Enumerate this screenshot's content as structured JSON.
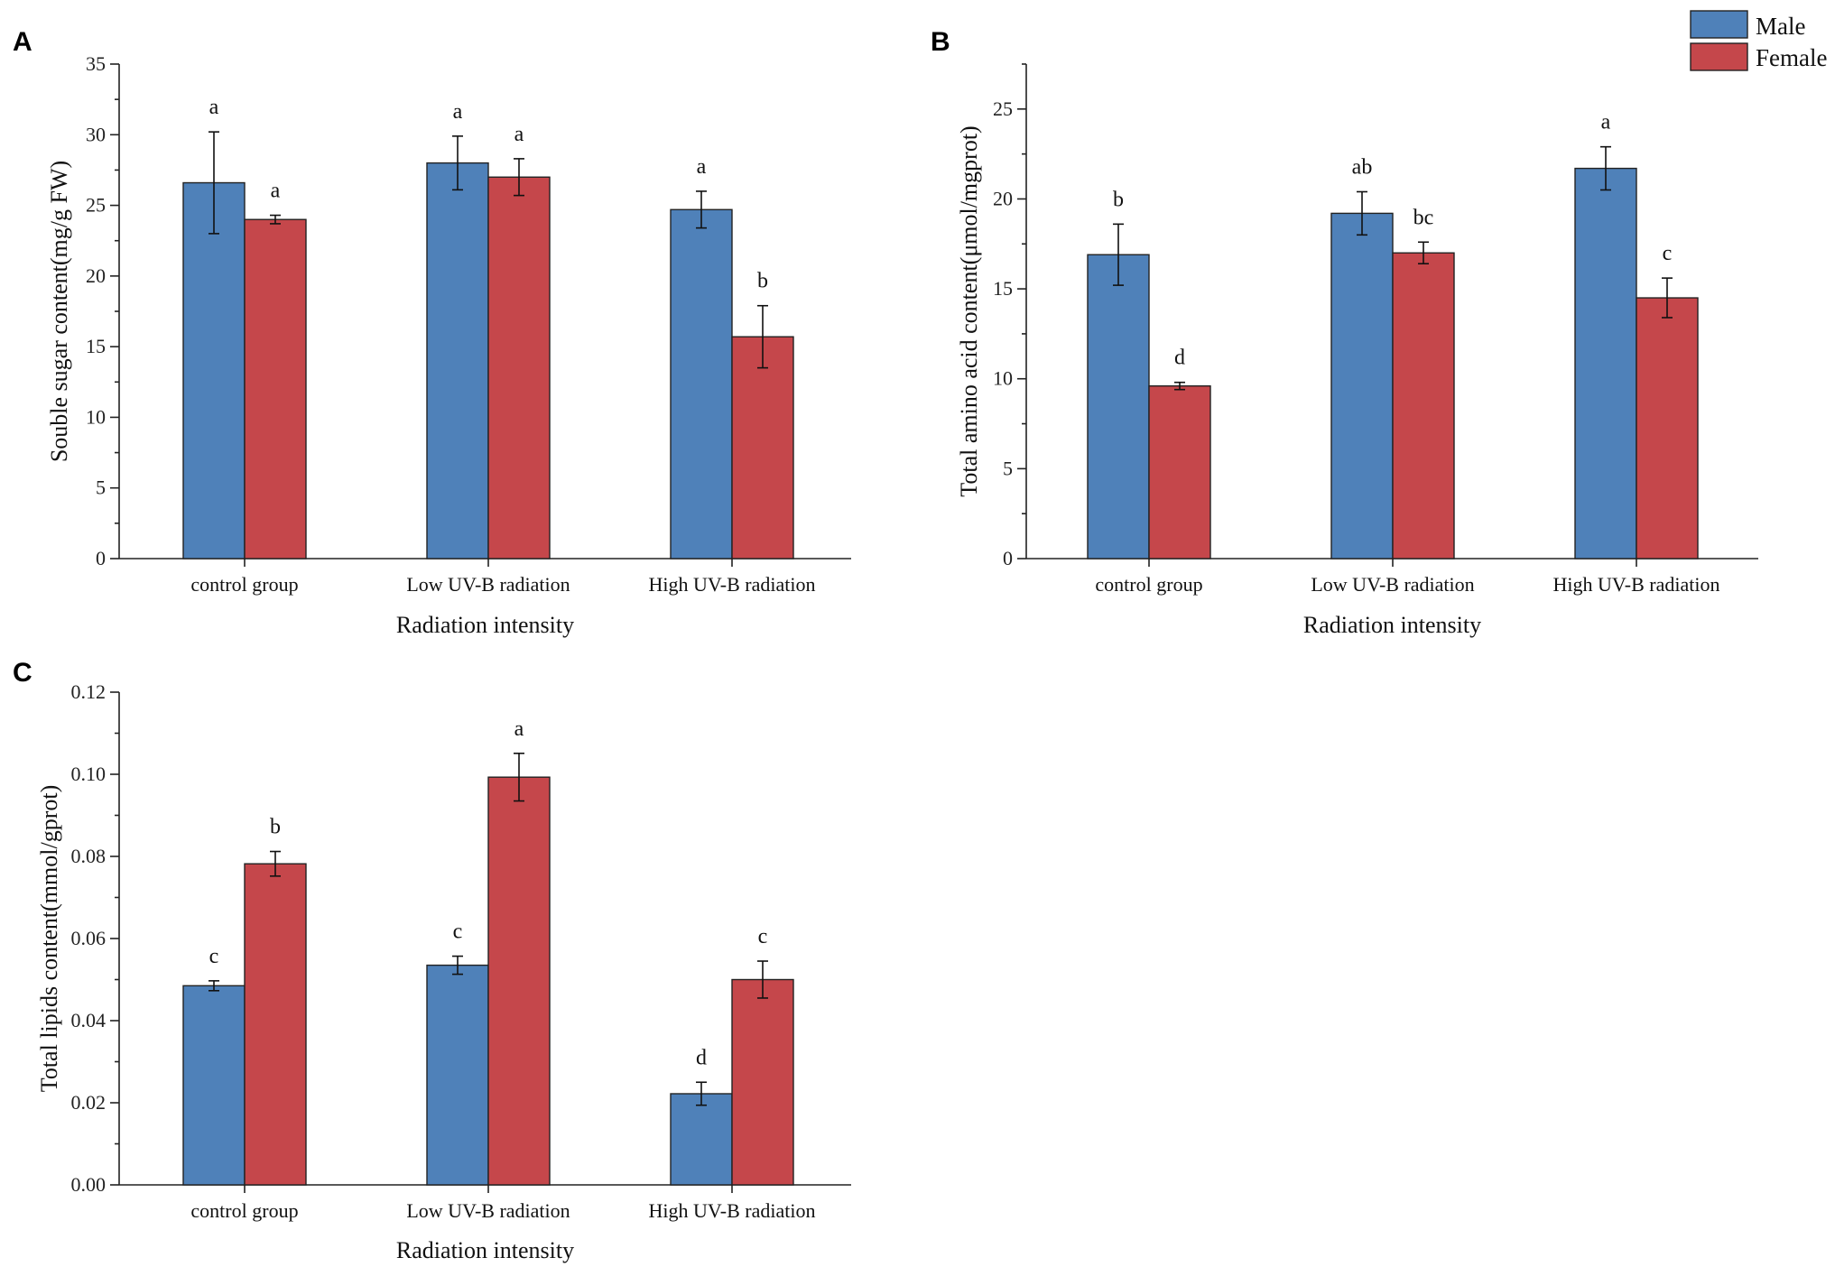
{
  "legend": {
    "entries": [
      {
        "label": "Male",
        "color": "#4f81b9"
      },
      {
        "label": "Female",
        "color": "#c5474b"
      }
    ]
  },
  "chart_data": [
    {
      "id": "A",
      "panel_label": "A",
      "type": "bar",
      "title": "",
      "xlabel": "Radiation intensity",
      "ylabel": "Souble sugar content(mg/g FW)",
      "categories": [
        "control group",
        "Low UV-B radiation",
        "High UV-B radiation"
      ],
      "ylim": [
        0,
        35
      ],
      "yticks": [
        0,
        5,
        10,
        15,
        20,
        25,
        30,
        35
      ],
      "ytick_labels": [
        "0",
        "5",
        "10",
        "15",
        "20",
        "25",
        "30",
        "35"
      ],
      "series": [
        {
          "name": "Male",
          "values": [
            26.6,
            28.0,
            24.7
          ],
          "errors": [
            3.6,
            1.9,
            1.3
          ],
          "sig": [
            "a",
            "a",
            "a"
          ]
        },
        {
          "name": "Female",
          "values": [
            24.0,
            27.0,
            15.7
          ],
          "errors": [
            0.3,
            1.3,
            2.2
          ],
          "sig": [
            "a",
            "a",
            "b"
          ]
        }
      ]
    },
    {
      "id": "B",
      "panel_label": "B",
      "type": "bar",
      "title": "",
      "xlabel": "Radiation intensity",
      "ylabel": "Total amino acid content(μmol/mgprot)",
      "categories": [
        "control group",
        "Low UV-B radiation",
        "High UV-B radiation"
      ],
      "ylim": [
        0,
        27.5
      ],
      "yticks": [
        0,
        5,
        10,
        15,
        20,
        25
      ],
      "ytick_labels": [
        "0",
        "5",
        "10",
        "15",
        "20",
        "25"
      ],
      "series": [
        {
          "name": "Male",
          "values": [
            16.9,
            19.2,
            21.7
          ],
          "errors": [
            1.7,
            1.2,
            1.2
          ],
          "sig": [
            "b",
            "ab",
            "a"
          ]
        },
        {
          "name": "Female",
          "values": [
            9.6,
            17.0,
            14.5
          ],
          "errors": [
            0.2,
            0.6,
            1.1
          ],
          "sig": [
            "d",
            "bc",
            "c"
          ]
        }
      ]
    },
    {
      "id": "C",
      "panel_label": "C",
      "type": "bar",
      "title": "",
      "xlabel": "Radiation intensity",
      "ylabel": "Total lipids content(mmol/gprot)",
      "categories": [
        "control group",
        "Low UV-B radiation",
        "High UV-B radiation"
      ],
      "ylim": [
        0,
        0.12
      ],
      "yticks": [
        0,
        0.02,
        0.04,
        0.06,
        0.08,
        0.1,
        0.12
      ],
      "ytick_labels": [
        "0.00",
        "0.02",
        "0.04",
        "0.06",
        "0.08",
        "0.10",
        "0.12"
      ],
      "series": [
        {
          "name": "Male",
          "values": [
            0.0485,
            0.0535,
            0.0222
          ],
          "errors": [
            0.0012,
            0.0022,
            0.0028
          ],
          "sig": [
            "c",
            "c",
            "d"
          ]
        },
        {
          "name": "Female",
          "values": [
            0.0782,
            0.0993,
            0.05
          ],
          "errors": [
            0.003,
            0.0058,
            0.0045
          ],
          "sig": [
            "b",
            "a",
            "c"
          ]
        }
      ]
    }
  ]
}
